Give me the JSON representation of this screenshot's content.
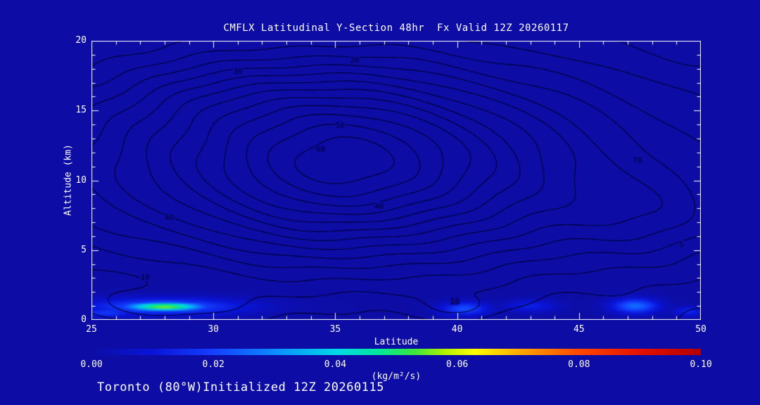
{
  "title": "CMFLX Latitudinal Y-Section 48hr  Fx Valid 12Z 20260117",
  "footer": "Toronto (80°W)Initialized 12Z 20260115",
  "colors": {
    "background": "#0d0da6",
    "contour": "#000030",
    "axis_text": "#ffffff"
  },
  "chart_data": {
    "type": "contour",
    "title": "CMFLX Latitudinal Y-Section 48hr  Fx Valid 12Z 20260117",
    "xlabel": "Latitude",
    "ylabel": "Altitude (km)",
    "xlim": [
      25,
      50
    ],
    "ylim": [
      0,
      20
    ],
    "xticks": [
      25,
      30,
      35,
      40,
      45,
      50
    ],
    "yticks": [
      0,
      5,
      10,
      15,
      20
    ],
    "x_minor_step": 1,
    "y_minor_step": 1,
    "grid": false,
    "contour_field": {
      "gaussians": [
        {
          "x": 35.5,
          "y": 11.5,
          "amp": 38,
          "sx": 7.0,
          "sy": 6.0
        },
        {
          "x": 35.0,
          "y": 11.0,
          "amp": 35,
          "sx": 20.0,
          "sy": 9.0
        },
        {
          "x": 47.5,
          "y": 7.5,
          "amp": 9,
          "sx": 3.5,
          "sy": 3.0
        },
        {
          "x": 28.0,
          "y": 1.0,
          "amp": 10,
          "sx": 3.0,
          "sy": 1.3
        },
        {
          "x": 31.0,
          "y": 16.0,
          "amp": 6,
          "sx": 4.0,
          "sy": 2.5
        },
        {
          "x": 40.2,
          "y": 0.9,
          "amp": 6,
          "sx": 1.6,
          "sy": 0.9
        }
      ],
      "ripple": {
        "amp": 1.1,
        "fx": 1.15,
        "fy": 0.85
      },
      "levels": [
        5,
        10,
        15,
        20,
        25,
        30,
        35,
        40,
        45,
        50,
        55,
        60,
        65,
        70
      ]
    },
    "contour_labels": [
      {
        "value": "20",
        "lat": 35.8,
        "alt": 18.6
      },
      {
        "value": "30",
        "lat": 31.0,
        "alt": 17.8
      },
      {
        "value": "50",
        "lat": 35.2,
        "alt": 13.9
      },
      {
        "value": "60",
        "lat": 34.4,
        "alt": 12.2
      },
      {
        "value": "40",
        "lat": 28.2,
        "alt": 7.3
      },
      {
        "value": "40",
        "lat": 36.8,
        "alt": 8.1
      },
      {
        "value": "70",
        "lat": 47.4,
        "alt": 11.4
      },
      {
        "value": "5",
        "lat": 49.2,
        "alt": 5.4
      },
      {
        "value": "10",
        "lat": 27.2,
        "alt": 3.0
      },
      {
        "value": "10",
        "lat": 39.9,
        "alt": 1.3
      }
    ],
    "fill_blobs": [
      {
        "lat": 28.0,
        "alt": 0.95,
        "peak": 0.056,
        "sx": 1.7,
        "sy": 0.33
      },
      {
        "lat": 28.0,
        "alt": 0.95,
        "peak": 0.024,
        "sx": 3.4,
        "sy": 0.62
      },
      {
        "lat": 25.6,
        "alt": 0.5,
        "peak": 0.018,
        "sx": 1.2,
        "sy": 0.35
      },
      {
        "lat": 40.3,
        "alt": 0.8,
        "peak": 0.022,
        "sx": 1.0,
        "sy": 0.5
      },
      {
        "lat": 43.0,
        "alt": 1.0,
        "peak": 0.013,
        "sx": 1.1,
        "sy": 0.45
      },
      {
        "lat": 47.3,
        "alt": 1.0,
        "peak": 0.026,
        "sx": 1.0,
        "sy": 0.55
      },
      {
        "lat": 49.5,
        "alt": 0.6,
        "peak": 0.014,
        "sx": 0.7,
        "sy": 0.35
      }
    ],
    "colorbar": {
      "min": 0.0,
      "max": 0.1,
      "ticks": [
        "0.00",
        "0.02",
        "0.04",
        "0.06",
        "0.08",
        "0.10"
      ],
      "label": "(kg/m²/s)",
      "colormap": [
        {
          "t": 0.0,
          "c": "#0d0da6"
        },
        {
          "t": 0.1,
          "c": "#0a14d8"
        },
        {
          "t": 0.2,
          "c": "#1440ff"
        },
        {
          "t": 0.3,
          "c": "#0c8cff"
        },
        {
          "t": 0.4,
          "c": "#00d8e8"
        },
        {
          "t": 0.47,
          "c": "#00e89c"
        },
        {
          "t": 0.53,
          "c": "#3ce83c"
        },
        {
          "t": 0.58,
          "c": "#b4f000"
        },
        {
          "t": 0.63,
          "c": "#ffff00"
        },
        {
          "t": 0.71,
          "c": "#ffa000"
        },
        {
          "t": 0.8,
          "c": "#ff4800"
        },
        {
          "t": 0.9,
          "c": "#e81000"
        },
        {
          "t": 1.0,
          "c": "#b40000"
        }
      ]
    }
  }
}
